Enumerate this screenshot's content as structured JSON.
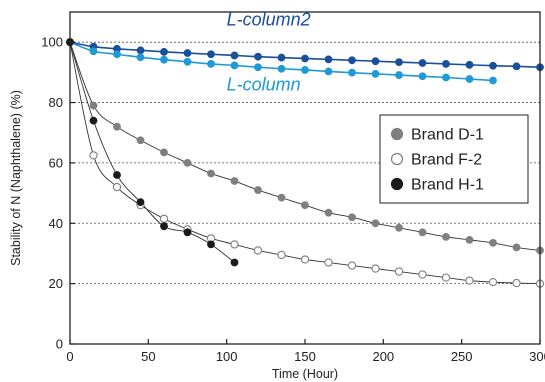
{
  "chart_data": {
    "type": "scatter",
    "title": "",
    "xlabel": "Time (Hour)",
    "ylabel": "Stability of N (Naphthalene) (%)",
    "xlim": [
      0,
      300
    ],
    "ylim": [
      0,
      110
    ],
    "xticks": [
      0,
      50,
      100,
      150,
      200,
      250,
      300
    ],
    "yticks": [
      0,
      20,
      40,
      60,
      80,
      100
    ],
    "grid": "horizontal dotted",
    "legend_position": "right-middle",
    "legend": [
      "Brand D-1",
      "Brand F-2",
      "Brand H-1"
    ],
    "annotations": [
      {
        "text": "L-column2",
        "color": "#1a4f9c"
      },
      {
        "text": "L-column",
        "color": "#1f9ad6"
      }
    ],
    "series": [
      {
        "name": "L-column2",
        "color": "#1a4f9c",
        "marker": "filled",
        "x": [
          0,
          15,
          30,
          45,
          60,
          75,
          90,
          105,
          120,
          135,
          150,
          165,
          180,
          195,
          210,
          225,
          240,
          255,
          270,
          285,
          300
        ],
        "y": [
          100,
          98.5,
          97.8,
          97.3,
          96.8,
          96.4,
          96.0,
          95.6,
          95.2,
          94.9,
          94.6,
          94.3,
          94.0,
          93.7,
          93.4,
          93.1,
          92.8,
          92.5,
          92.2,
          92.0,
          91.7
        ]
      },
      {
        "name": "L-column",
        "color": "#1f9ad6",
        "marker": "filled",
        "x": [
          0,
          15,
          30,
          45,
          60,
          75,
          90,
          105,
          120,
          135,
          150,
          165,
          180,
          195,
          210,
          225,
          240,
          255,
          270
        ],
        "y": [
          100,
          97.0,
          96.0,
          95.0,
          94.2,
          93.5,
          92.8,
          92.3,
          91.7,
          91.2,
          90.8,
          90.3,
          89.9,
          89.5,
          89.1,
          88.7,
          88.3,
          87.8,
          87.3
        ]
      },
      {
        "name": "Brand D-1",
        "color": "#7f7f7f",
        "marker": "filled",
        "x": [
          0,
          15,
          30,
          45,
          60,
          75,
          90,
          105,
          120,
          135,
          150,
          165,
          180,
          195,
          210,
          225,
          240,
          255,
          270,
          285,
          300
        ],
        "y": [
          100,
          79,
          72,
          67.5,
          63.5,
          60,
          56.5,
          54,
          51,
          48.5,
          46,
          43.5,
          42,
          40,
          38.5,
          37,
          35.5,
          34.5,
          33.5,
          32,
          31
        ]
      },
      {
        "name": "Brand F-2",
        "color": "#7f7f7f",
        "marker": "hollow",
        "x": [
          0,
          15,
          30,
          45,
          60,
          75,
          90,
          105,
          120,
          135,
          150,
          165,
          180,
          195,
          210,
          225,
          240,
          255,
          270,
          285,
          300
        ],
        "y": [
          100,
          62.5,
          52,
          46,
          41.5,
          38,
          35,
          33,
          31,
          29.5,
          28,
          27,
          26,
          25,
          24,
          23,
          22,
          21,
          20.5,
          20.2,
          20
        ]
      },
      {
        "name": "Brand H-1",
        "color": "#1a1a1a",
        "marker": "filled",
        "x": [
          0,
          15,
          30,
          45,
          60,
          75,
          90,
          105
        ],
        "y": [
          100,
          74,
          56,
          47,
          39,
          37,
          33,
          27
        ]
      }
    ]
  }
}
